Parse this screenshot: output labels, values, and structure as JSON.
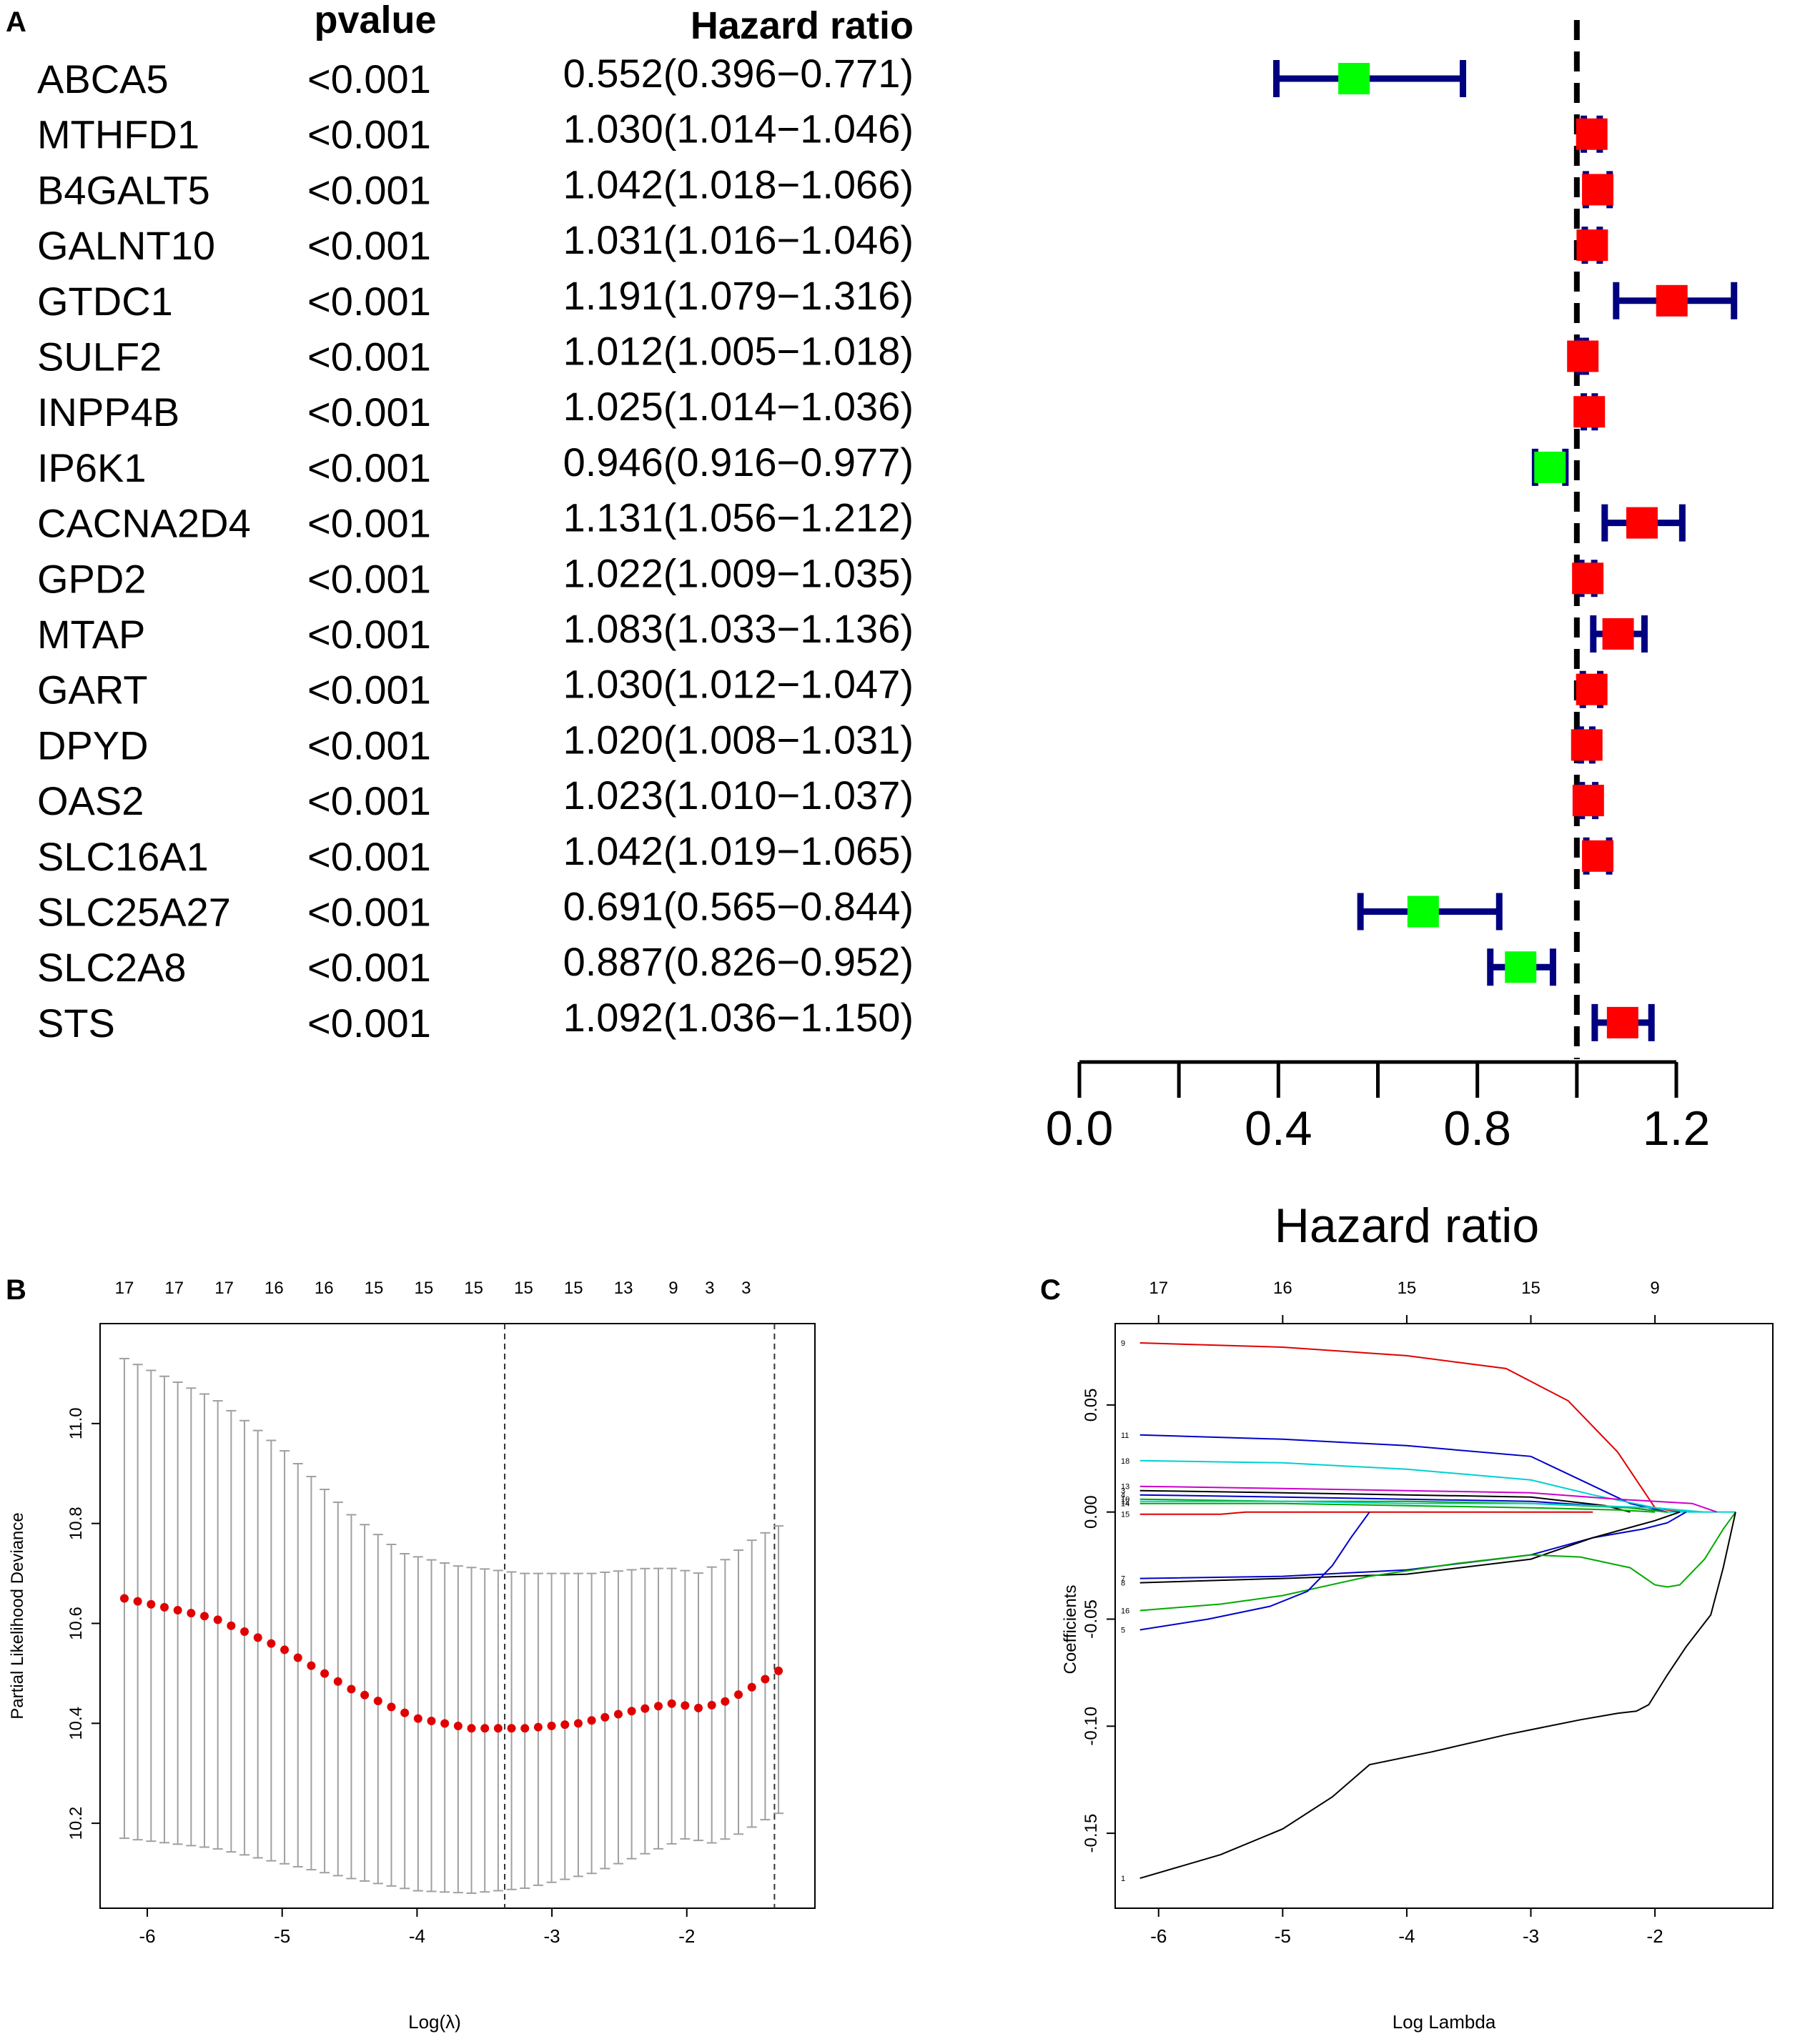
{
  "panels": {
    "a_label": "A",
    "b_label": "B",
    "c_label": "C"
  },
  "chart_data": [
    {
      "type": "forest",
      "panel": "A",
      "columns": {
        "pvalue": "pvalue",
        "hazard_ratio": "Hazard ratio"
      },
      "xlabel": "Hazard ratio",
      "xlim": [
        0.0,
        1.2
      ],
      "xticks": [
        "0.0",
        "0.4",
        "0.8",
        "1.2"
      ],
      "reference_line": 1.0,
      "colors": {
        "protective": "#00ff00",
        "risk": "#ff0000",
        "ci": "#000080"
      },
      "rows": [
        {
          "gene": "ABCA5",
          "pvalue": "<0.001",
          "hr_text": "0.552(0.396−0.771)",
          "hr": 0.552,
          "low": 0.396,
          "high": 0.771
        },
        {
          "gene": "MTHFD1",
          "pvalue": "<0.001",
          "hr_text": "1.030(1.014−1.046)",
          "hr": 1.03,
          "low": 1.014,
          "high": 1.046
        },
        {
          "gene": "B4GALT5",
          "pvalue": "<0.001",
          "hr_text": "1.042(1.018−1.066)",
          "hr": 1.042,
          "low": 1.018,
          "high": 1.066
        },
        {
          "gene": "GALNT10",
          "pvalue": "<0.001",
          "hr_text": "1.031(1.016−1.046)",
          "hr": 1.031,
          "low": 1.016,
          "high": 1.046
        },
        {
          "gene": "GTDC1",
          "pvalue": "<0.001",
          "hr_text": "1.191(1.079−1.316)",
          "hr": 1.191,
          "low": 1.079,
          "high": 1.316
        },
        {
          "gene": "SULF2",
          "pvalue": "<0.001",
          "hr_text": "1.012(1.005−1.018)",
          "hr": 1.012,
          "low": 1.005,
          "high": 1.018
        },
        {
          "gene": "INPP4B",
          "pvalue": "<0.001",
          "hr_text": "1.025(1.014−1.036)",
          "hr": 1.025,
          "low": 1.014,
          "high": 1.036
        },
        {
          "gene": "IP6K1",
          "pvalue": "<0.001",
          "hr_text": "0.946(0.916−0.977)",
          "hr": 0.946,
          "low": 0.916,
          "high": 0.977
        },
        {
          "gene": "CACNA2D4",
          "pvalue": "<0.001",
          "hr_text": "1.131(1.056−1.212)",
          "hr": 1.131,
          "low": 1.056,
          "high": 1.212
        },
        {
          "gene": "GPD2",
          "pvalue": "<0.001",
          "hr_text": "1.022(1.009−1.035)",
          "hr": 1.022,
          "low": 1.009,
          "high": 1.035
        },
        {
          "gene": "MTAP",
          "pvalue": "<0.001",
          "hr_text": "1.083(1.033−1.136)",
          "hr": 1.083,
          "low": 1.033,
          "high": 1.136
        },
        {
          "gene": "GART",
          "pvalue": "<0.001",
          "hr_text": "1.030(1.012−1.047)",
          "hr": 1.03,
          "low": 1.012,
          "high": 1.047
        },
        {
          "gene": "DPYD",
          "pvalue": "<0.001",
          "hr_text": "1.020(1.008−1.031)",
          "hr": 1.02,
          "low": 1.008,
          "high": 1.031
        },
        {
          "gene": "OAS2",
          "pvalue": "<0.001",
          "hr_text": "1.023(1.010−1.037)",
          "hr": 1.023,
          "low": 1.01,
          "high": 1.037
        },
        {
          "gene": "SLC16A1",
          "pvalue": "<0.001",
          "hr_text": "1.042(1.019−1.065)",
          "hr": 1.042,
          "low": 1.019,
          "high": 1.065
        },
        {
          "gene": "SLC25A27",
          "pvalue": "<0.001",
          "hr_text": "0.691(0.565−0.844)",
          "hr": 0.691,
          "low": 0.565,
          "high": 0.844
        },
        {
          "gene": "SLC2A8",
          "pvalue": "<0.001",
          "hr_text": "0.887(0.826−0.952)",
          "hr": 0.887,
          "low": 0.826,
          "high": 0.952
        },
        {
          "gene": "STS",
          "pvalue": "<0.001",
          "hr_text": "1.092(1.036−1.150)",
          "hr": 1.092,
          "low": 1.036,
          "high": 1.15
        }
      ]
    },
    {
      "type": "scatter",
      "panel": "B",
      "xlabel": "Log(λ)",
      "ylabel": "Partial Likelihood Deviance",
      "xlim": [
        -6.35,
        -1.05
      ],
      "ylim": [
        10.03,
        11.2
      ],
      "xticks": [
        -6,
        -5,
        -4,
        -3,
        -2
      ],
      "yticks": [
        10.2,
        10.4,
        10.6,
        10.8,
        11.0
      ],
      "top_counts": [
        {
          "x": -6.17,
          "label": "17"
        },
        {
          "x": -5.8,
          "label": "17"
        },
        {
          "x": -5.43,
          "label": "17"
        },
        {
          "x": -5.06,
          "label": "16"
        },
        {
          "x": -4.69,
          "label": "16"
        },
        {
          "x": -4.32,
          "label": "15"
        },
        {
          "x": -3.95,
          "label": "15"
        },
        {
          "x": -3.58,
          "label": "15"
        },
        {
          "x": -3.21,
          "label": "15"
        },
        {
          "x": -2.84,
          "label": "15"
        },
        {
          "x": -2.47,
          "label": "13"
        },
        {
          "x": -2.1,
          "label": "9"
        },
        {
          "x": -1.83,
          "label": "3"
        },
        {
          "x": -1.56,
          "label": "3"
        }
      ],
      "vlines": [
        -3.35,
        -1.35
      ],
      "x_start": -6.17,
      "x_end": -1.32,
      "n_points": 50,
      "curve_knots": [
        [
          -6.17,
          10.65
        ],
        [
          -5.5,
          10.61
        ],
        [
          -5.0,
          10.55
        ],
        [
          -4.5,
          10.47
        ],
        [
          -4.0,
          10.41
        ],
        [
          -3.6,
          10.39
        ],
        [
          -3.2,
          10.39
        ],
        [
          -2.8,
          10.4
        ],
        [
          -2.4,
          10.425
        ],
        [
          -2.1,
          10.44
        ],
        [
          -1.9,
          10.43
        ],
        [
          -1.7,
          10.445
        ],
        [
          -1.5,
          10.475
        ],
        [
          -1.32,
          10.505
        ]
      ],
      "upper_knots": [
        [
          -6.17,
          11.13
        ],
        [
          -5.5,
          11.05
        ],
        [
          -5.0,
          10.95
        ],
        [
          -4.5,
          10.82
        ],
        [
          -4.1,
          10.74
        ],
        [
          -3.7,
          10.715
        ],
        [
          -3.2,
          10.7
        ],
        [
          -2.7,
          10.7
        ],
        [
          -2.3,
          10.71
        ],
        [
          -2.1,
          10.71
        ],
        [
          -1.9,
          10.7
        ],
        [
          -1.7,
          10.73
        ],
        [
          -1.5,
          10.77
        ],
        [
          -1.32,
          10.795
        ]
      ],
      "lower_knots": [
        [
          -6.17,
          10.17
        ],
        [
          -5.5,
          10.15
        ],
        [
          -5.0,
          10.12
        ],
        [
          -4.5,
          10.09
        ],
        [
          -4.0,
          10.065
        ],
        [
          -3.6,
          10.06
        ],
        [
          -3.2,
          10.07
        ],
        [
          -2.7,
          10.1
        ],
        [
          -2.3,
          10.14
        ],
        [
          -2.0,
          10.17
        ],
        [
          -1.8,
          10.16
        ],
        [
          -1.6,
          10.18
        ],
        [
          -1.4,
          10.21
        ],
        [
          -1.32,
          10.22
        ]
      ],
      "colors": {
        "points": "#e00000",
        "errorbars": "#a0a0a0"
      }
    },
    {
      "type": "line",
      "panel": "C",
      "xlabel": "Log Lambda",
      "ylabel": "Coefficients",
      "xlim": [
        -6.35,
        -1.05
      ],
      "ylim": [
        -0.185,
        0.088
      ],
      "xticks": [
        -6,
        -5,
        -4,
        -3,
        -2
      ],
      "yticks": [
        -0.15,
        -0.1,
        -0.05,
        0.0,
        0.05
      ],
      "ytick_labels": [
        "-0.15",
        "-0.10",
        "-0.05",
        "0.00",
        "0.05"
      ],
      "top_counts": [
        {
          "x": -6.0,
          "label": "17"
        },
        {
          "x": -5.0,
          "label": "16"
        },
        {
          "x": -4.0,
          "label": "15"
        },
        {
          "x": -3.0,
          "label": "15"
        },
        {
          "x": -2.0,
          "label": "9"
        }
      ],
      "series": [
        {
          "name": "9",
          "color": "#e00000",
          "points": [
            [
              -6.15,
              0.079
            ],
            [
              -5,
              0.077
            ],
            [
              -4,
              0.073
            ],
            [
              -3.2,
              0.067
            ],
            [
              -2.7,
              0.052
            ],
            [
              -2.3,
              0.028
            ],
            [
              -2.0,
              0.002
            ],
            [
              -1.8,
              0.0
            ]
          ]
        },
        {
          "name": "11",
          "color": "#0000cc",
          "points": [
            [
              -6.15,
              0.036
            ],
            [
              -5,
              0.034
            ],
            [
              -4,
              0.031
            ],
            [
              -3,
              0.026
            ],
            [
              -2.6,
              0.015
            ],
            [
              -2.2,
              0.004
            ],
            [
              -1.9,
              0.0
            ]
          ]
        },
        {
          "name": "18",
          "color": "#00d0d0",
          "points": [
            [
              -6.15,
              0.024
            ],
            [
              -5,
              0.023
            ],
            [
              -4,
              0.02
            ],
            [
              -3,
              0.015
            ],
            [
              -2.5,
              0.008
            ],
            [
              -2.0,
              0.002
            ],
            [
              -1.7,
              0.0
            ]
          ]
        },
        {
          "name": "13",
          "color": "#cc00cc",
          "points": [
            [
              -6.15,
              0.012
            ],
            [
              -5,
              0.011
            ],
            [
              -4,
              0.01
            ],
            [
              -3,
              0.009
            ],
            [
              -2.3,
              0.006
            ],
            [
              -1.7,
              0.004
            ],
            [
              -1.5,
              0.0
            ]
          ]
        },
        {
          "name": "3",
          "color": "#000000",
          "points": [
            [
              -6.15,
              0.01
            ],
            [
              -5,
              0.009
            ],
            [
              -4,
              0.008
            ],
            [
              -3,
              0.007
            ],
            [
              -2.4,
              0.003
            ],
            [
              -2.2,
              0.0
            ]
          ]
        },
        {
          "name": "4",
          "color": "#0000cc",
          "points": [
            [
              -6.15,
              0.008
            ],
            [
              -5,
              0.007
            ],
            [
              -4,
              0.006
            ],
            [
              -3,
              0.005
            ],
            [
              -2.2,
              0.002
            ],
            [
              -1.9,
              0.0
            ]
          ]
        },
        {
          "name": "10",
          "color": "#00aa00",
          "points": [
            [
              -6.15,
              0.006
            ],
            [
              -5,
              0.005
            ],
            [
              -4,
              0.005
            ],
            [
              -3,
              0.004
            ],
            [
              -2.2,
              0.002
            ],
            [
              -1.9,
              0.0
            ]
          ]
        },
        {
          "name": "12",
          "color": "#00d0d0",
          "points": [
            [
              -6.15,
              0.005
            ],
            [
              -5,
              0.005
            ],
            [
              -4,
              0.004
            ],
            [
              -3,
              0.004
            ],
            [
              -2,
              0.002
            ],
            [
              -1.6,
              0.0
            ]
          ]
        },
        {
          "name": "14",
          "color": "#00aa00",
          "points": [
            [
              -6.15,
              0.004
            ],
            [
              -5,
              0.004
            ],
            [
              -4,
              0.003
            ],
            [
              -3,
              0.002
            ],
            [
              -2.3,
              0.001
            ],
            [
              -2.0,
              0.0
            ]
          ]
        },
        {
          "name": "15",
          "color": "#e00000",
          "points": [
            [
              -6.15,
              -0.001
            ],
            [
              -5.5,
              -0.001
            ],
            [
              -5.3,
              0.0
            ],
            [
              -4,
              0.0
            ],
            [
              -2.5,
              0.0
            ]
          ]
        },
        {
          "name": "7",
          "color": "#0000cc",
          "points": [
            [
              -6.15,
              -0.031
            ],
            [
              -5,
              -0.03
            ],
            [
              -4,
              -0.027
            ],
            [
              -3,
              -0.02
            ],
            [
              -2.5,
              -0.012
            ],
            [
              -2.1,
              -0.008
            ],
            [
              -1.9,
              -0.005
            ],
            [
              -1.75,
              0.0
            ]
          ]
        },
        {
          "name": "8",
          "color": "#000000",
          "points": [
            [
              -6.15,
              -0.033
            ],
            [
              -5,
              -0.031
            ],
            [
              -4,
              -0.029
            ],
            [
              -3,
              -0.022
            ],
            [
              -2.5,
              -0.012
            ],
            [
              -2.0,
              -0.004
            ],
            [
              -1.8,
              0.0
            ]
          ]
        },
        {
          "name": "16",
          "color": "#00aa00",
          "points": [
            [
              -6.15,
              -0.046
            ],
            [
              -5.5,
              -0.043
            ],
            [
              -5,
              -0.039
            ],
            [
              -4.3,
              -0.03
            ],
            [
              -3.6,
              -0.024
            ],
            [
              -3.0,
              -0.02
            ],
            [
              -2.6,
              -0.021
            ],
            [
              -2.2,
              -0.026
            ],
            [
              -2.0,
              -0.034
            ],
            [
              -1.9,
              -0.035
            ],
            [
              -1.8,
              -0.034
            ],
            [
              -1.6,
              -0.022
            ],
            [
              -1.45,
              -0.008
            ],
            [
              -1.35,
              0.0
            ]
          ]
        },
        {
          "name": "5",
          "color": "#0000cc",
          "points": [
            [
              -6.15,
              -0.055
            ],
            [
              -5.6,
              -0.05
            ],
            [
              -5.1,
              -0.044
            ],
            [
              -4.8,
              -0.037
            ],
            [
              -4.6,
              -0.025
            ],
            [
              -4.45,
              -0.012
            ],
            [
              -4.3,
              0.0
            ]
          ]
        },
        {
          "name": "1",
          "color": "#000000",
          "points": [
            [
              -6.15,
              -0.171
            ],
            [
              -5.5,
              -0.16
            ],
            [
              -5.0,
              -0.148
            ],
            [
              -4.6,
              -0.133
            ],
            [
              -4.3,
              -0.118
            ],
            [
              -3.8,
              -0.112
            ],
            [
              -3.2,
              -0.104
            ],
            [
              -2.6,
              -0.097
            ],
            [
              -2.3,
              -0.094
            ],
            [
              -2.15,
              -0.093
            ],
            [
              -2.05,
              -0.09
            ],
            [
              -1.9,
              -0.076
            ],
            [
              -1.75,
              -0.063
            ],
            [
              -1.55,
              -0.048
            ],
            [
              -1.45,
              -0.026
            ],
            [
              -1.35,
              0.0
            ]
          ]
        }
      ]
    }
  ]
}
